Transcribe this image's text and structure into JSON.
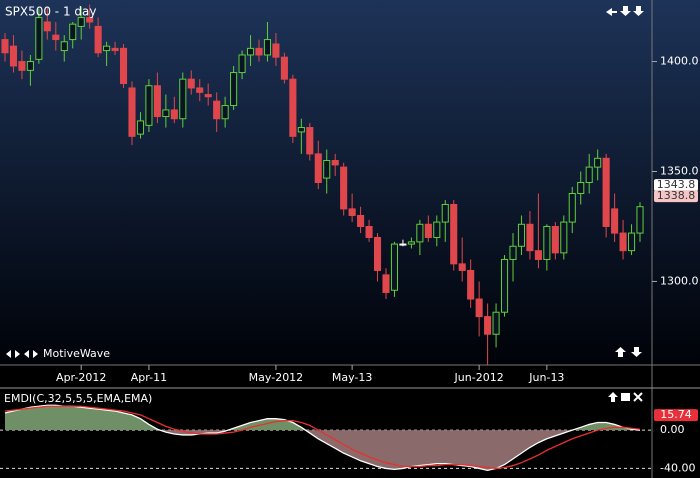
{
  "chart_data": [
    {
      "type": "candlestick",
      "title": "SPX500 - 1 day",
      "watermark": "MotiveWave",
      "categories": [
        null,
        null,
        null,
        null,
        null,
        null,
        null,
        null,
        null,
        "Apr-2012",
        null,
        null,
        null,
        null,
        null,
        null,
        null,
        "Apr-11",
        null,
        null,
        null,
        null,
        null,
        null,
        null,
        null,
        null,
        null,
        null,
        null,
        null,
        null,
        "May-2012",
        null,
        null,
        null,
        null,
        null,
        null,
        null,
        null,
        "May-13",
        null,
        null,
        null,
        null,
        null,
        null,
        null,
        null,
        null,
        null,
        null,
        null,
        null,
        null,
        "Jun-2012",
        null,
        null,
        null,
        null,
        null,
        null,
        null,
        "Jun-13",
        null,
        null,
        null,
        null,
        null,
        null,
        null,
        null,
        null,
        null,
        null
      ],
      "open": [
        1410,
        1407,
        1400,
        1396,
        1401,
        1418,
        1412,
        1405,
        1410,
        1416,
        1420,
        1416,
        1405,
        1406,
        1406,
        1388,
        1367,
        1371,
        1389,
        1375,
        1378,
        1374,
        1392,
        1388,
        1385,
        1382,
        1374,
        1380,
        1395,
        1403,
        1406,
        1403,
        1408,
        1402,
        1392,
        1368,
        1370,
        1358,
        1347,
        1355,
        1352,
        1333,
        1330,
        1325,
        1320,
        1303,
        1296,
        1317,
        1317,
        1318,
        1326,
        1320,
        1327,
        1335,
        1308,
        1305,
        1292,
        1284,
        1276,
        1286,
        1310,
        1316,
        1326,
        1314,
        1310,
        1325,
        1313,
        1327,
        1340,
        1345,
        1352,
        1356,
        1333,
        1322,
        1314,
        1322
      ],
      "high": [
        1413,
        1412,
        1405,
        1403,
        1424,
        1425,
        1418,
        1412,
        1418,
        1425,
        1426,
        1420,
        1409,
        1409,
        1408,
        1391,
        1377,
        1392,
        1395,
        1385,
        1384,
        1395,
        1396,
        1392,
        1390,
        1386,
        1384,
        1398,
        1405,
        1412,
        1410,
        1418,
        1413,
        1404,
        1394,
        1374,
        1372,
        1364,
        1360,
        1358,
        1354,
        1340,
        1334,
        1328,
        1322,
        1306,
        1318,
        1319,
        1320,
        1328,
        1330,
        1330,
        1337,
        1337,
        1320,
        1310,
        1300,
        1290,
        1290,
        1312,
        1322,
        1330,
        1332,
        1340,
        1326,
        1327,
        1330,
        1343,
        1350,
        1358,
        1360,
        1358,
        1340,
        1328,
        1326,
        1336
      ],
      "low": [
        1400,
        1395,
        1392,
        1389,
        1399,
        1410,
        1405,
        1400,
        1406,
        1410,
        1415,
        1402,
        1398,
        1403,
        1388,
        1362,
        1365,
        1368,
        1372,
        1370,
        1372,
        1370,
        1385,
        1382,
        1380,
        1368,
        1370,
        1378,
        1392,
        1398,
        1400,
        1400,
        1398,
        1390,
        1363,
        1358,
        1355,
        1342,
        1340,
        1348,
        1330,
        1327,
        1322,
        1318,
        1300,
        1292,
        1293,
        1316,
        1315,
        1312,
        1318,
        1316,
        1318,
        1305,
        1300,
        1288,
        1275,
        1262,
        1270,
        1284,
        1300,
        1312,
        1310,
        1306,
        1305,
        1310,
        1310,
        1322,
        1335,
        1340,
        1346,
        1320,
        1318,
        1310,
        1312,
        1318
      ],
      "close": [
        1404,
        1398,
        1396,
        1400,
        1420,
        1414,
        1410,
        1409,
        1417,
        1420,
        1418,
        1404,
        1407,
        1405,
        1390,
        1366,
        1373,
        1389,
        1375,
        1378,
        1374,
        1392,
        1388,
        1386,
        1384,
        1374,
        1380,
        1395,
        1403,
        1406,
        1403,
        1410,
        1402,
        1392,
        1366,
        1370,
        1358,
        1345,
        1355,
        1353,
        1333,
        1330,
        1325,
        1320,
        1305,
        1295,
        1317,
        1317,
        1318,
        1326,
        1320,
        1327,
        1335,
        1308,
        1305,
        1292,
        1284,
        1276,
        1286,
        1310,
        1316,
        1326,
        1314,
        1310,
        1325,
        1313,
        1327,
        1340,
        1345,
        1352,
        1356,
        1325,
        1322,
        1314,
        1322,
        1334
      ],
      "up_color": "#5fcf3a",
      "down_color": "#e0474c",
      "doji_color": "#ffffff",
      "ylim": [
        1262,
        1428
      ],
      "yticks": [
        {
          "value": 1400,
          "label": "1400.0"
        },
        {
          "value": 1350,
          "label": "1350.0"
        },
        {
          "value": 1300,
          "label": "1300.0"
        }
      ],
      "price_tags": [
        1343.8,
        1338.8
      ],
      "price_tag_colors": [
        "#ffffff",
        "#f6c6c6"
      ]
    },
    {
      "type": "line",
      "title": "EMDI(C,32,5,5,5,EMA,EMA)",
      "series": [
        {
          "color": "#ffffff",
          "values": [
            18,
            20,
            22,
            24,
            25,
            26,
            26,
            25,
            25,
            24,
            23,
            22,
            21,
            20,
            18,
            16,
            12,
            6,
            1,
            -2,
            -4,
            -5,
            -5,
            -4,
            -3,
            -3,
            -1,
            2,
            5,
            8,
            10,
            12,
            12,
            11,
            8,
            3,
            -3,
            -9,
            -14,
            -19,
            -24,
            -28,
            -32,
            -35,
            -38,
            -40,
            -41,
            -40,
            -38,
            -37,
            -36,
            -35,
            -35,
            -36,
            -37,
            -38,
            -40,
            -42,
            -40,
            -36,
            -30,
            -24,
            -18,
            -13,
            -9,
            -6,
            -3,
            0,
            3,
            6,
            8,
            8,
            6,
            3,
            1,
            0
          ]
        },
        {
          "color": "#e8302e",
          "values": [
            20,
            21,
            22,
            23,
            24,
            25,
            25,
            25,
            25,
            25,
            24,
            23,
            22,
            21,
            20,
            18,
            16,
            12,
            8,
            4,
            1,
            -1,
            -3,
            -4,
            -4,
            -4,
            -3,
            -2,
            0,
            3,
            5,
            7,
            9,
            10,
            10,
            8,
            5,
            0,
            -5,
            -10,
            -15,
            -20,
            -24,
            -28,
            -31,
            -34,
            -36,
            -38,
            -38,
            -38,
            -37,
            -37,
            -36,
            -36,
            -36,
            -37,
            -38,
            -39,
            -40,
            -39,
            -37,
            -34,
            -30,
            -26,
            -21,
            -17,
            -13,
            -9,
            -6,
            -3,
            0,
            2,
            3,
            3,
            2,
            1
          ]
        }
      ],
      "fill_colors": [
        "#6f8f66",
        "#8a6a6a"
      ],
      "ylim": [
        -50,
        42
      ],
      "yticks": [
        {
          "value": 0,
          "label": "0.00"
        },
        {
          "value": -40,
          "label": "-40.00"
        }
      ],
      "price_tags": [
        15.74
      ],
      "price_tag_colors": [
        "#e8303a"
      ]
    }
  ]
}
